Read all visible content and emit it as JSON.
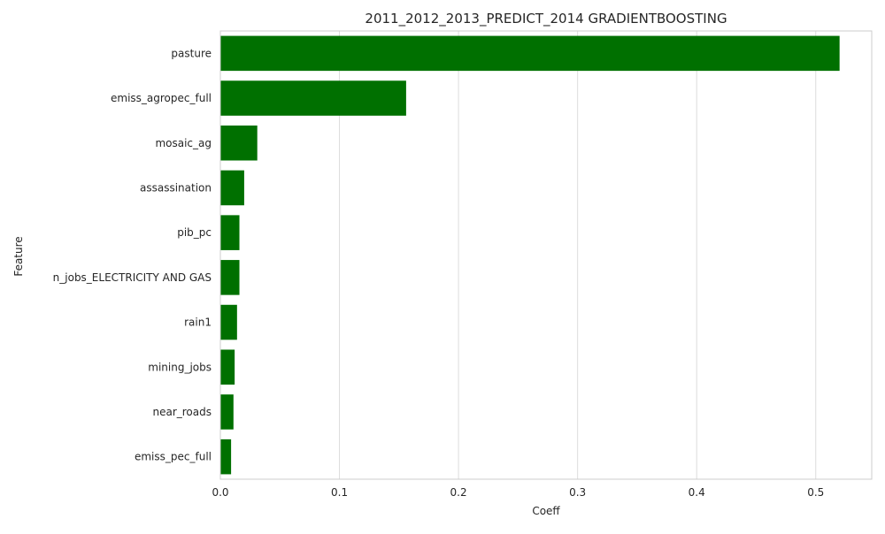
{
  "chart_data": {
    "type": "bar",
    "orientation": "horizontal",
    "title": "2011_2012_2013_PREDICT_2014 GRADIENTBOOSTING",
    "xlabel": "Coeff",
    "ylabel": "Feature",
    "categories": [
      "pasture",
      "emiss_agropec_full",
      "mosaic_ag",
      "assassination",
      "pib_pc",
      "n_jobs_ELECTRICITY AND GAS",
      "rain1",
      "mining_jobs",
      "near_roads",
      "emiss_pec_full"
    ],
    "values": [
      0.52,
      0.156,
      0.031,
      0.02,
      0.016,
      0.016,
      0.014,
      0.012,
      0.011,
      0.009
    ],
    "xlim": [
      0,
      0.547
    ],
    "xticks": [
      0.0,
      0.1,
      0.2,
      0.3,
      0.4,
      0.5
    ],
    "xtick_labels": [
      "0.0",
      "0.1",
      "0.2",
      "0.3",
      "0.4",
      "0.5"
    ],
    "grid": "vertical",
    "colors": {
      "bar": "#007000",
      "grid": "#dcdcdc",
      "spine": "#cccccc",
      "text": "#262626"
    }
  }
}
